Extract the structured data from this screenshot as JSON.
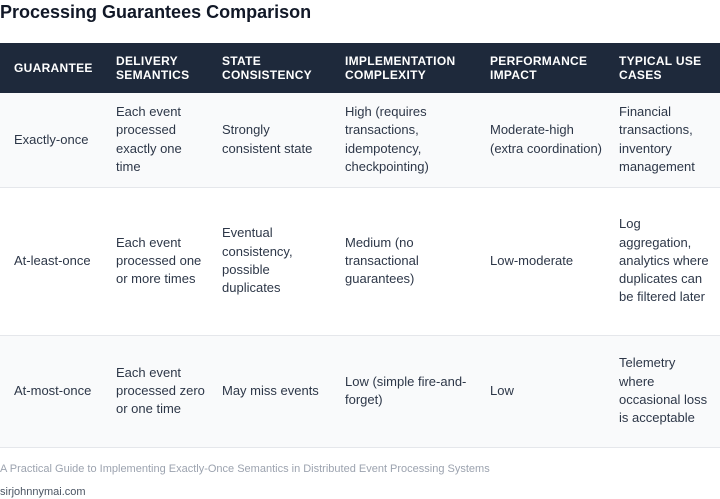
{
  "title": "Processing Guarantees Comparison",
  "table": {
    "headers": [
      "GUARANTEE",
      "DELIVERY SEMANTICS",
      "STATE CONSISTENCY",
      "IMPLEMENTATION COMPLEXITY",
      "PERFORMANCE IMPACT",
      "TYPICAL USE CASES"
    ],
    "rows": [
      [
        "Exactly-once",
        "Each event processed exactly one time",
        "Strongly consistent state",
        "High (requires transactions, idempotency, checkpointing)",
        "Moderate-high (extra coordination)",
        "Financial transactions, inventory management"
      ],
      [
        "At-least-once",
        "Each event processed one or more times",
        "Eventual consistency, possible duplicates",
        "Medium (no transactional guarantees)",
        "Low-moderate",
        "Log aggregation, analytics where duplicates can be filtered later"
      ],
      [
        "At-most-once",
        "Each event processed zero or one time",
        "May miss events",
        "Low (simple fire-and-forget)",
        "Low",
        "Telemetry where occasional loss is acceptable"
      ]
    ]
  },
  "caption": "A Practical Guide to Implementing Exactly-Once Semantics in Distributed Event Processing Systems",
  "source": "sirjohnnymai.com",
  "colors": {
    "header_bg": "#1e293b",
    "header_text": "#ffffff",
    "row_alt_bg": "#f9fafb",
    "border": "#e5e7eb"
  }
}
